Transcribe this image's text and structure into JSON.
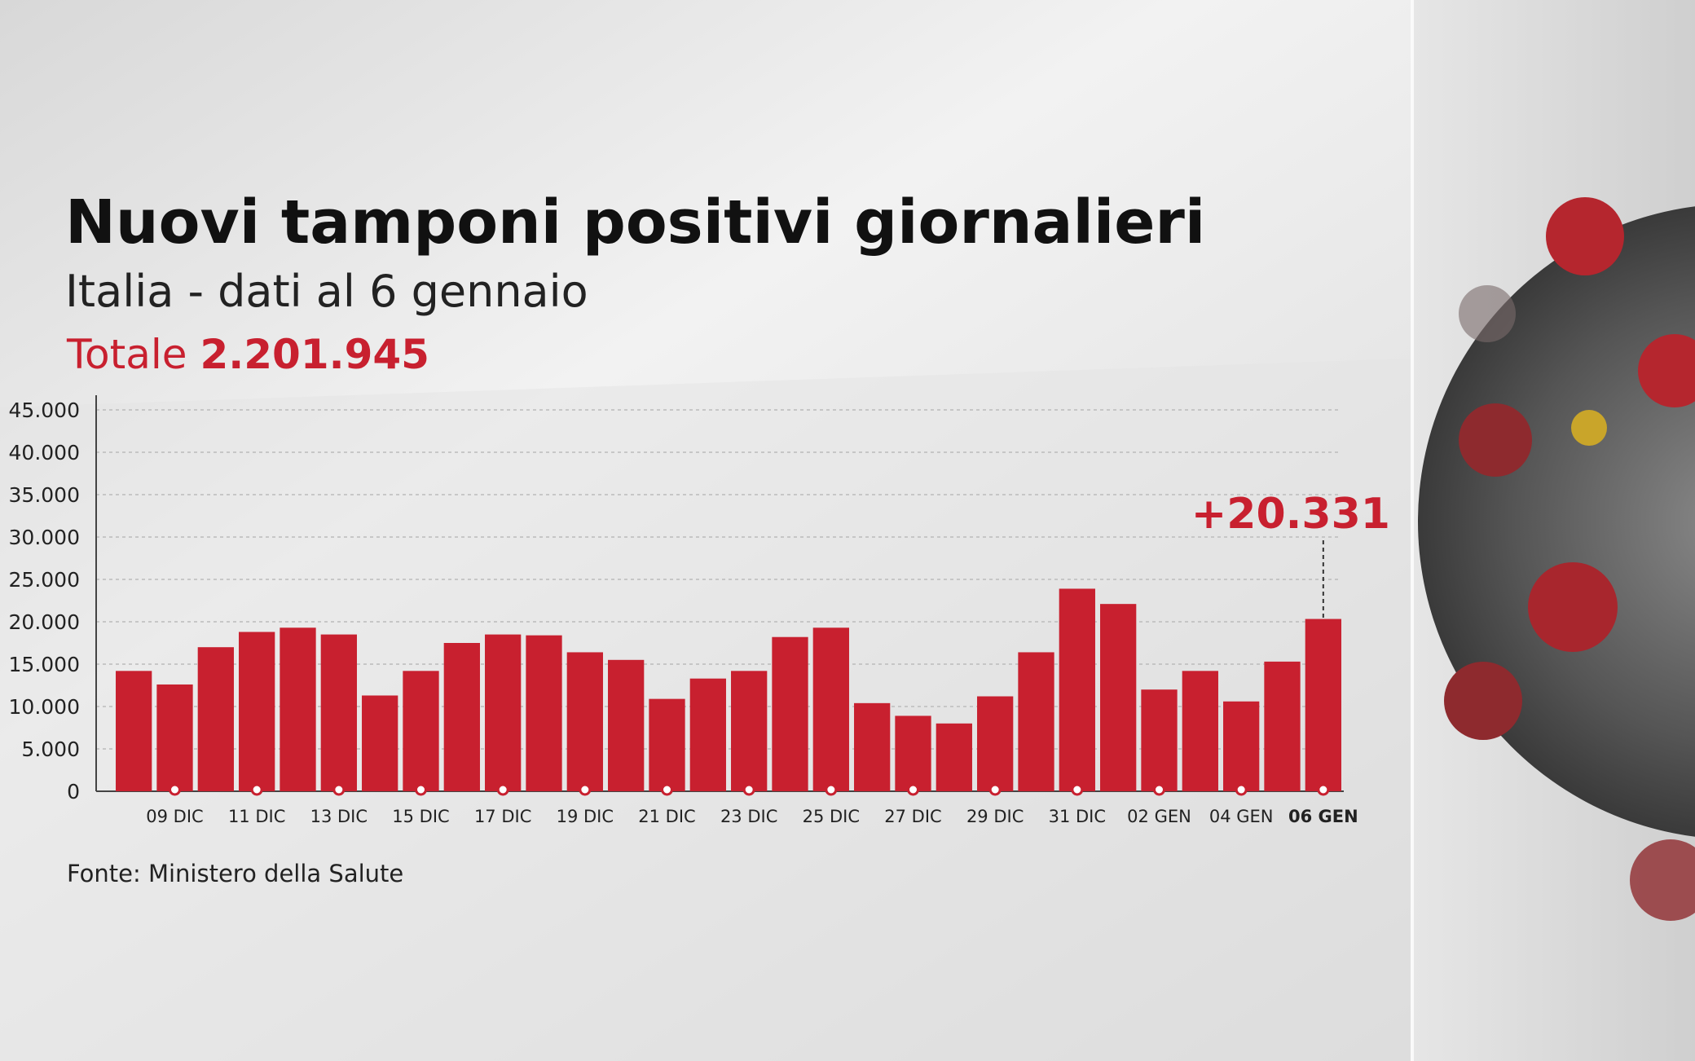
{
  "chart_data": {
    "type": "bar",
    "title": "Nuovi tamponi positivi giornalieri",
    "subtitle": "Italia - dati al 6 gennaio",
    "total_label": "Totale",
    "total_value": "2.201.945",
    "source": "Fonte: Ministero della Salute",
    "categories": [
      null,
      "09 DIC",
      null,
      "11 DIC",
      null,
      "13 DIC",
      null,
      "15 DIC",
      null,
      "17 DIC",
      null,
      "19 DIC",
      null,
      "21 DIC",
      null,
      "23 DIC",
      null,
      "25 DIC",
      null,
      "27 DIC",
      null,
      "29 DIC",
      null,
      "31 DIC",
      null,
      "02 GEN",
      null,
      "04 GEN",
      null,
      "06 GEN"
    ],
    "values": [
      14200,
      12600,
      17000,
      18800,
      19300,
      18500,
      11300,
      14200,
      17500,
      18500,
      18400,
      16400,
      15500,
      10900,
      13300,
      14200,
      18200,
      19300,
      10400,
      8900,
      8000,
      11200,
      16400,
      23900,
      22100,
      12000,
      14200,
      10600,
      15300,
      20331
    ],
    "value_labels": [
      null,
      null,
      null,
      null,
      null,
      null,
      null,
      null,
      null,
      null,
      null,
      null,
      null,
      null,
      null,
      null,
      null,
      null,
      null,
      null,
      null,
      null,
      null,
      null,
      null,
      null,
      null,
      null,
      null,
      "+20.331"
    ],
    "color": "#c8202f",
    "ylim": [
      0,
      45000
    ],
    "yticks": [
      0,
      {
        "value": 5000,
        "label": "5.000"
      },
      {
        "value": 10000,
        "label": "10.000"
      },
      {
        "value": 15000,
        "label": "15.000"
      },
      {
        "value": 20000,
        "label": "20.000"
      },
      {
        "value": 25000,
        "label": "25.000"
      },
      {
        "value": 30000,
        "label": "30.000"
      },
      {
        "value": 35000,
        "label": "35.000"
      },
      {
        "value": 40000,
        "label": "40.000"
      },
      {
        "value": 45000,
        "label": "45.000"
      }
    ],
    "grid": true
  }
}
